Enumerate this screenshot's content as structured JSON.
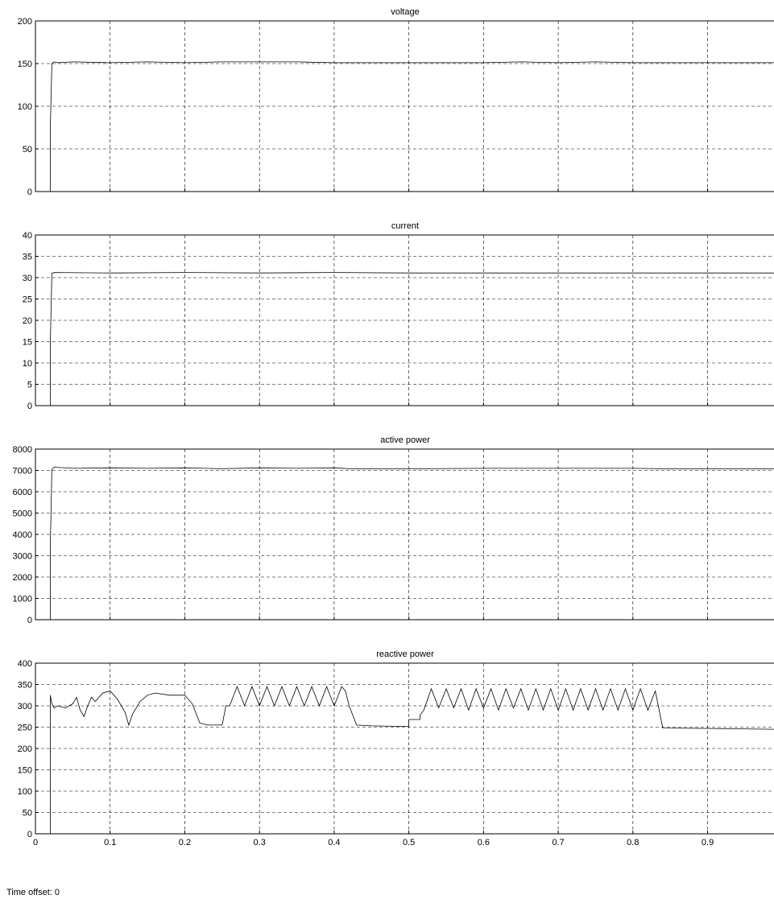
{
  "footer": {
    "time_offset": "Time offset: 0"
  },
  "chart_data": [
    {
      "type": "line",
      "title": "voltage",
      "xlim": [
        0,
        0.99
      ],
      "ylim": [
        0,
        200
      ],
      "xticks": [
        0,
        0.1,
        0.2,
        0.3,
        0.4,
        0.5,
        0.6,
        0.7,
        0.8,
        0.9
      ],
      "xtick_labels": [],
      "yticks": [
        0,
        50,
        100,
        150,
        200
      ],
      "ytick_labels": [
        "0",
        "50",
        "100",
        "150",
        "200"
      ],
      "grid": true,
      "series": [
        {
          "x": [
            0,
            0.02,
            0.02,
            0.022,
            0.025,
            0.03,
            0.05,
            0.1,
            0.15,
            0.2,
            0.25,
            0.3,
            0.35,
            0.4,
            0.42,
            0.45,
            0.5,
            0.52,
            0.55,
            0.6,
            0.65,
            0.7,
            0.75,
            0.8,
            0.84,
            0.9,
            0.99
          ],
          "y": [
            0,
            0,
            75,
            150,
            152,
            151,
            152,
            151,
            152,
            151,
            152,
            152,
            152,
            151,
            151,
            151,
            151,
            151,
            151,
            151,
            152,
            151,
            152,
            151,
            151,
            151,
            151
          ]
        }
      ]
    },
    {
      "type": "line",
      "title": "current",
      "xlim": [
        0,
        0.99
      ],
      "ylim": [
        0,
        40
      ],
      "xticks": [
        0,
        0.1,
        0.2,
        0.3,
        0.4,
        0.5,
        0.6,
        0.7,
        0.8,
        0.9
      ],
      "xtick_labels": [],
      "yticks": [
        0,
        5,
        10,
        15,
        20,
        25,
        30,
        35,
        40
      ],
      "ytick_labels": [
        "0",
        "5",
        "10",
        "15",
        "20",
        "25",
        "30",
        "35",
        "40"
      ],
      "grid": true,
      "series": [
        {
          "x": [
            0,
            0.02,
            0.02,
            0.022,
            0.025,
            0.1,
            0.2,
            0.3,
            0.4,
            0.5,
            0.6,
            0.7,
            0.8,
            0.9,
            0.99
          ],
          "y": [
            0,
            0,
            15,
            31,
            31.2,
            31.1,
            31.2,
            31.1,
            31.2,
            31.1,
            31.1,
            31.1,
            31.1,
            31.1,
            31.1
          ]
        }
      ]
    },
    {
      "type": "line",
      "title": "active power",
      "xlim": [
        0,
        0.99
      ],
      "ylim": [
        0,
        8000
      ],
      "xticks": [
        0,
        0.1,
        0.2,
        0.3,
        0.4,
        0.5,
        0.6,
        0.7,
        0.8,
        0.9
      ],
      "xtick_labels": [],
      "yticks": [
        0,
        1000,
        2000,
        3000,
        4000,
        5000,
        6000,
        7000,
        8000
      ],
      "ytick_labels": [
        "0",
        "1000",
        "2000",
        "3000",
        "4000",
        "5000",
        "6000",
        "7000",
        "8000"
      ],
      "grid": true,
      "series": [
        {
          "x": [
            0,
            0.02,
            0.02,
            0.022,
            0.025,
            0.05,
            0.1,
            0.15,
            0.2,
            0.25,
            0.3,
            0.35,
            0.4,
            0.42,
            0.45,
            0.5,
            0.52,
            0.6,
            0.7,
            0.8,
            0.84,
            0.9,
            0.99
          ],
          "y": [
            0,
            0,
            3500,
            7050,
            7150,
            7100,
            7120,
            7100,
            7120,
            7080,
            7120,
            7100,
            7120,
            7080,
            7080,
            7080,
            7080,
            7100,
            7100,
            7100,
            7080,
            7080,
            7080
          ]
        }
      ]
    },
    {
      "type": "line",
      "title": "reactive power",
      "xlim": [
        0,
        0.99
      ],
      "ylim": [
        0,
        400
      ],
      "xticks": [
        0,
        0.1,
        0.2,
        0.3,
        0.4,
        0.5,
        0.6,
        0.7,
        0.8,
        0.9
      ],
      "xtick_labels": [
        "0",
        "0.1",
        "0.2",
        "0.3",
        "0.4",
        "0.5",
        "0.6",
        "0.7",
        "0.8",
        "0.9"
      ],
      "yticks": [
        0,
        50,
        100,
        150,
        200,
        250,
        300,
        350,
        400
      ],
      "ytick_labels": [
        "0",
        "50",
        "100",
        "150",
        "200",
        "250",
        "300",
        "350",
        "400"
      ],
      "grid": true,
      "series": [
        {
          "x": [
            0,
            0.02,
            0.02,
            0.022,
            0.025,
            0.03,
            0.04,
            0.05,
            0.055,
            0.06,
            0.065,
            0.07,
            0.075,
            0.08,
            0.09,
            0.1,
            0.11,
            0.12,
            0.125,
            0.13,
            0.14,
            0.15,
            0.16,
            0.18,
            0.2,
            0.21,
            0.22,
            0.23,
            0.25,
            0.255,
            0.26,
            0.27,
            0.28,
            0.29,
            0.3,
            0.31,
            0.32,
            0.33,
            0.34,
            0.35,
            0.36,
            0.37,
            0.38,
            0.39,
            0.4,
            0.41,
            0.415,
            0.42,
            0.43,
            0.45,
            0.48,
            0.5,
            0.5,
            0.515,
            0.515,
            0.52,
            0.53,
            0.54,
            0.55,
            0.56,
            0.57,
            0.58,
            0.59,
            0.6,
            0.61,
            0.62,
            0.63,
            0.64,
            0.65,
            0.66,
            0.67,
            0.68,
            0.69,
            0.7,
            0.71,
            0.72,
            0.73,
            0.74,
            0.75,
            0.76,
            0.77,
            0.78,
            0.79,
            0.8,
            0.81,
            0.82,
            0.83,
            0.84,
            0.9,
            0.99
          ],
          "y": [
            0,
            0,
            325,
            305,
            295,
            300,
            295,
            305,
            320,
            290,
            275,
            300,
            320,
            310,
            330,
            335,
            315,
            285,
            255,
            280,
            310,
            325,
            330,
            325,
            325,
            305,
            260,
            255,
            255,
            300,
            300,
            345,
            300,
            345,
            300,
            345,
            300,
            345,
            300,
            345,
            300,
            345,
            300,
            345,
            300,
            345,
            335,
            300,
            255,
            253,
            252,
            252,
            268,
            268,
            278,
            290,
            340,
            295,
            340,
            295,
            340,
            290,
            340,
            295,
            340,
            290,
            340,
            295,
            340,
            290,
            340,
            290,
            340,
            290,
            340,
            290,
            340,
            290,
            340,
            290,
            340,
            290,
            340,
            290,
            340,
            290,
            335,
            248,
            247,
            245
          ]
        }
      ]
    }
  ]
}
